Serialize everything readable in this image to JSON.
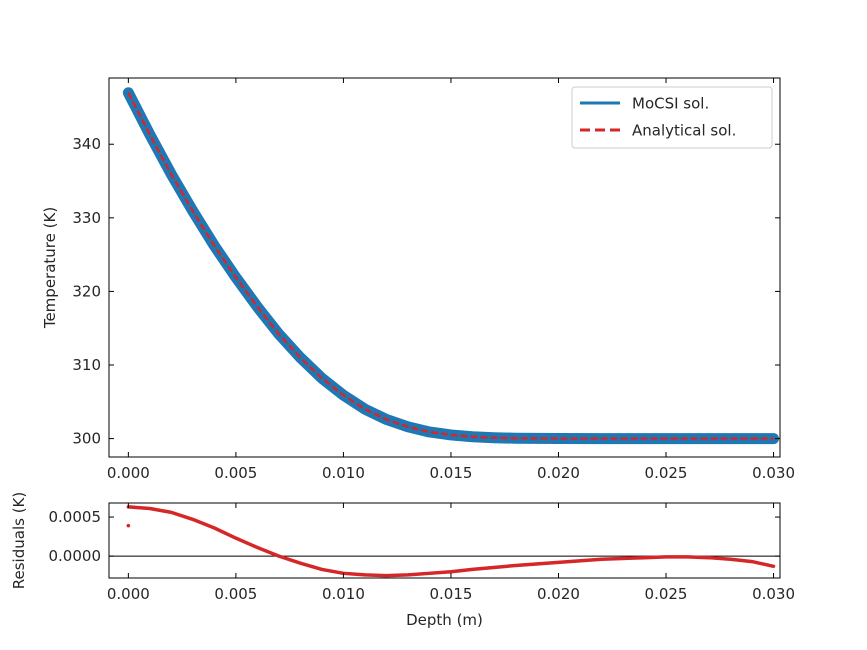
{
  "chart_data": [
    {
      "type": "line",
      "title": "",
      "xlabel": "",
      "ylabel": "Temperature (K)",
      "xlim": [
        -0.0009,
        0.0303
      ],
      "ylim": [
        297.5,
        349.0
      ],
      "xticks": [
        0.0,
        0.005,
        0.01,
        0.015,
        0.02,
        0.025,
        0.03
      ],
      "xtick_labels": [
        "0.000",
        "0.005",
        "0.010",
        "0.015",
        "0.020",
        "0.025",
        "0.030"
      ],
      "yticks": [
        300,
        310,
        320,
        330,
        340
      ],
      "ytick_labels": [
        "300",
        "310",
        "320",
        "330",
        "340"
      ],
      "grid": false,
      "legend_position": "top-right",
      "series": [
        {
          "name": "MoCSI sol.",
          "style": "solid",
          "color": "#1f77b4",
          "x": [
            0.0,
            0.001,
            0.002,
            0.003,
            0.004,
            0.005,
            0.006,
            0.007,
            0.008,
            0.009,
            0.01,
            0.011,
            0.012,
            0.013,
            0.014,
            0.015,
            0.016,
            0.017,
            0.018,
            0.02,
            0.022,
            0.024,
            0.026,
            0.028,
            0.03
          ],
          "y": [
            347.0,
            341.3,
            335.9,
            330.9,
            326.2,
            321.9,
            317.9,
            314.2,
            311.0,
            308.2,
            305.9,
            304.0,
            302.6,
            301.6,
            300.9,
            300.5,
            300.25,
            300.12,
            300.05,
            300.01,
            300.0,
            300.0,
            300.0,
            300.0,
            300.0
          ]
        },
        {
          "name": "Analytical sol.",
          "style": "dashed",
          "color": "#d62728",
          "x": [
            0.0,
            0.001,
            0.002,
            0.003,
            0.004,
            0.005,
            0.006,
            0.007,
            0.008,
            0.009,
            0.01,
            0.011,
            0.012,
            0.013,
            0.014,
            0.015,
            0.016,
            0.017,
            0.018,
            0.02,
            0.022,
            0.024,
            0.026,
            0.028,
            0.03
          ],
          "y": [
            347.0,
            341.3,
            335.9,
            330.9,
            326.2,
            321.9,
            317.9,
            314.2,
            311.0,
            308.2,
            305.9,
            304.0,
            302.6,
            301.6,
            300.9,
            300.5,
            300.25,
            300.12,
            300.05,
            300.01,
            300.0,
            300.0,
            300.0,
            300.0,
            300.0
          ]
        }
      ]
    },
    {
      "type": "line",
      "title": "",
      "xlabel": "Depth (m)",
      "ylabel": "Residuals (K)",
      "xlim": [
        -0.0009,
        0.0303
      ],
      "ylim": [
        -0.00028,
        0.00068
      ],
      "xticks": [
        0.0,
        0.005,
        0.01,
        0.015,
        0.02,
        0.025,
        0.03
      ],
      "xtick_labels": [
        "0.000",
        "0.005",
        "0.010",
        "0.015",
        "0.020",
        "0.025",
        "0.030"
      ],
      "yticks": [
        0.0,
        0.0005
      ],
      "ytick_labels": [
        "0.0000",
        "0.0005"
      ],
      "zero_line": 0.0,
      "grid": false,
      "series": [
        {
          "color": "#d62728",
          "x": [
            0.0,
            0.001,
            0.002,
            0.003,
            0.004,
            0.005,
            0.006,
            0.007,
            0.008,
            0.009,
            0.01,
            0.011,
            0.012,
            0.013,
            0.014,
            0.015,
            0.016,
            0.018,
            0.02,
            0.022,
            0.024,
            0.025,
            0.026,
            0.027,
            0.028,
            0.029,
            0.03
          ],
          "y": [
            0.00063,
            0.00061,
            0.00056,
            0.00047,
            0.00036,
            0.00023,
            0.00011,
            0.0,
            -9e-05,
            -0.00017,
            -0.00022,
            -0.00024,
            -0.00025,
            -0.00024,
            -0.00022,
            -0.0002,
            -0.00017,
            -0.00012,
            -8e-05,
            -4e-05,
            -2e-05,
            -1e-05,
            -1e-05,
            -2e-05,
            -4e-05,
            -7e-05,
            -0.00013
          ]
        }
      ],
      "outlier_points": [
        {
          "x": 0.0,
          "y": 0.00039
        }
      ]
    }
  ]
}
